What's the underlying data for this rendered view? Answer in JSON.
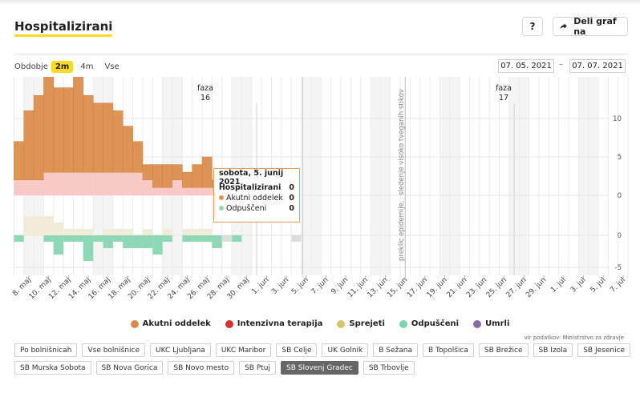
{
  "header": {
    "title": "Hospitalizirani",
    "help_label": "?",
    "share_label": "Deli graf na"
  },
  "period": {
    "label": "Obdobje",
    "options": [
      "2m",
      "4m",
      "Vse"
    ],
    "active": "2m",
    "date_from": "07. 05. 2021",
    "date_separator": "–",
    "date_to": "07. 07. 2021"
  },
  "chart_data": {
    "type": "bar",
    "x": [
      "2021-05-07",
      "2021-05-08",
      "2021-05-09",
      "2021-05-10",
      "2021-05-11",
      "2021-05-12",
      "2021-05-13",
      "2021-05-14",
      "2021-05-15",
      "2021-05-16",
      "2021-05-17",
      "2021-05-18",
      "2021-05-19",
      "2021-05-20",
      "2021-05-21",
      "2021-05-22",
      "2021-05-23",
      "2021-05-24",
      "2021-05-25",
      "2021-05-26",
      "2021-05-27",
      "2021-05-28",
      "2021-05-29",
      "2021-05-30",
      "2021-05-31",
      "2021-06-01",
      "2021-06-02",
      "2021-06-03",
      "2021-06-04",
      "2021-06-05"
    ],
    "x_tick_labels": [
      "8. maj",
      "10. maj",
      "12. maj",
      "14. maj",
      "16. maj",
      "18. maj",
      "20. maj",
      "22. maj",
      "24. maj",
      "26. maj",
      "28. maj",
      "30. maj",
      "1. jun",
      "3. jun",
      "5. jun",
      "7. jun",
      "9. jun",
      "11. jun",
      "13. jun",
      "15. jun",
      "17. jun",
      "19. jun",
      "21. jun",
      "23. jun",
      "25. jun",
      "27. jun",
      "29. jun",
      "1. jul",
      "3. jul",
      "5. jul",
      "7. jul"
    ],
    "top_series": [
      {
        "name": "Akutni oddelek",
        "color": "#dd9455",
        "values": [
          5,
          9,
          11,
          13,
          11,
          11,
          13,
          10,
          9,
          9,
          8,
          6,
          4,
          2,
          3,
          3,
          2,
          2,
          3,
          4,
          1,
          0,
          0,
          0,
          0,
          0,
          0,
          0,
          0,
          0
        ]
      },
      {
        "name": "Intenzivna terapija",
        "color": "#f9c9c7",
        "values": [
          2,
          2,
          2,
          3,
          3,
          3,
          3,
          3,
          3,
          3,
          3,
          3,
          3,
          2,
          1,
          1,
          2,
          1,
          1,
          1,
          1,
          0,
          0,
          0,
          0,
          0,
          0,
          0,
          0,
          0
        ]
      }
    ],
    "bottom_series": [
      {
        "name": "Sprejeti",
        "color": "#f1ecd7",
        "values": [
          0,
          3,
          3,
          3,
          2,
          1,
          1,
          1,
          0,
          1,
          1,
          1,
          0,
          1,
          0,
          1,
          0,
          1,
          1,
          1,
          0,
          0,
          0,
          0,
          0,
          0,
          0,
          0,
          0,
          0
        ]
      },
      {
        "name": "Odpuščeni",
        "color": "#8fd8b6",
        "values": [
          -1,
          0,
          0,
          -1,
          -3,
          -1,
          -1,
          -4,
          -1,
          -2,
          -1,
          -2,
          -2,
          -2,
          -3,
          -1,
          0,
          -1,
          -1,
          -1,
          -2,
          0,
          -1,
          0,
          0,
          0,
          0,
          0,
          0,
          0
        ]
      },
      {
        "name": "Umrli",
        "color": "#dddddd",
        "values": [
          -1,
          0,
          0,
          0,
          0,
          0,
          -1,
          0,
          -1,
          0,
          0,
          0,
          0,
          0,
          -1,
          0,
          0,
          0,
          0,
          0,
          0,
          -1,
          0,
          0,
          0,
          0,
          0,
          0,
          -1,
          0
        ]
      }
    ],
    "y_top_ticks": [
      0,
      5,
      10
    ],
    "y_top_range": [
      0,
      15
    ],
    "y_bottom_ticks": [
      0,
      -5
    ],
    "y_bottom_range": [
      -6,
      5
    ],
    "annotations": {
      "phase_16": {
        "line1": "faza",
        "line2": "16",
        "date": "2021-05-31"
      },
      "phase_17": {
        "line1": "faza",
        "line2": "17",
        "date": "2021-06-26"
      },
      "epidemic_end_line1": "preklic epidemije,",
      "epidemic_end_line2": "sledenje visoko tveganih stikov",
      "epidemic_end_date": "2021-06-15"
    }
  },
  "tooltip": {
    "date": "sobota, 5. junij 2021",
    "header_label": "Hospitalizirani",
    "header_value": "0",
    "rows": [
      {
        "label": "Akutni oddelek",
        "value": "0",
        "color": "#dd9455"
      },
      {
        "label": "Odpuščeni",
        "value": "0",
        "color": "#8fd8b6"
      }
    ]
  },
  "legend": [
    {
      "label": "Akutni oddelek",
      "color": "#d48a4e"
    },
    {
      "label": "Intenzivna terapija",
      "color": "#d63230"
    },
    {
      "label": "Sprejeti",
      "color": "#d8c46b"
    },
    {
      "label": "Odpuščeni",
      "color": "#7fd3ad"
    },
    {
      "label": "Umrli",
      "color": "#8a6aa3"
    }
  ],
  "source": "vir podatkov: Ministrstvo za zdravje",
  "hospitals": [
    {
      "label": "Po bolnišnicah",
      "selected": false
    },
    {
      "label": "Vse bolnišnice",
      "selected": false
    },
    {
      "label": "UKC Ljubljana",
      "selected": false
    },
    {
      "label": "UKC Maribor",
      "selected": false
    },
    {
      "label": "SB Celje",
      "selected": false
    },
    {
      "label": "UK Golnik",
      "selected": false
    },
    {
      "label": "B Sežana",
      "selected": false
    },
    {
      "label": "B Topolšica",
      "selected": false
    },
    {
      "label": "SB Brežice",
      "selected": false
    },
    {
      "label": "SB Izola",
      "selected": false
    },
    {
      "label": "SB Jesenice",
      "selected": false
    },
    {
      "label": "SB Murska Sobota",
      "selected": false
    },
    {
      "label": "SB Nova Gorica",
      "selected": false
    },
    {
      "label": "SB Novo mesto",
      "selected": false
    },
    {
      "label": "SB Ptuj",
      "selected": false
    },
    {
      "label": "SB Slovenj Gradec",
      "selected": true
    },
    {
      "label": "SB Trbovlje",
      "selected": false
    }
  ]
}
